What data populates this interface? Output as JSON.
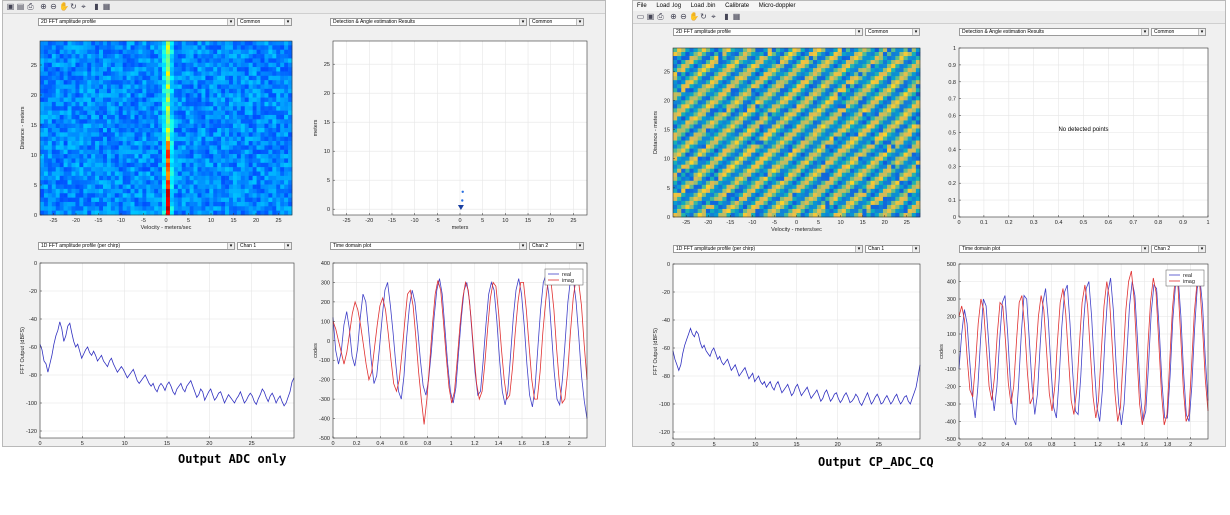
{
  "windowA": {
    "toolbar_icons": [
      "save-icon",
      "save-as-icon",
      "print-icon",
      "zoom-in-icon",
      "zoom-out-icon",
      "pan-icon",
      "rotate-icon",
      "data-cursor-icon",
      "colorbar-icon",
      "legend-icon"
    ],
    "panels": {
      "top_left": {
        "dropdown": "2D FFT amplitude profile",
        "mode": "Common"
      },
      "top_right": {
        "dropdown": "Detection & Angle estimation Results",
        "mode": "Common"
      },
      "bottom_left": {
        "dropdown": "1D FFT amplitude profile (per chirp)",
        "mode": "Chan 1"
      },
      "bottom_right": {
        "dropdown": "Time domain plot",
        "mode": "Chan 2"
      }
    },
    "caption": "Output ADC only"
  },
  "windowB": {
    "menu": [
      "File",
      "Load .log",
      "Load .bin",
      "Calibrate",
      "Micro-doppler"
    ],
    "toolbar_icons": [
      "open-icon",
      "save-icon",
      "print-icon",
      "zoom-in-icon",
      "zoom-out-icon",
      "pan-icon",
      "rotate-icon",
      "data-cursor-icon",
      "colorbar-icon",
      "legend-icon"
    ],
    "panels": {
      "top_left": {
        "dropdown": "2D FFT amplitude profile",
        "mode": "Common"
      },
      "top_right": {
        "dropdown": "Detection & Angle estimation Results",
        "mode": "Common"
      },
      "bottom_left": {
        "dropdown": "1D FFT amplitude profile (per chirp)",
        "mode": "Chan 1"
      },
      "bottom_right": {
        "dropdown": "Time domain plot",
        "mode": "Chan 2"
      }
    },
    "no_detect_text": "No detected points",
    "caption": "Output CP_ADC_CQ"
  },
  "chart_data": [
    {
      "id": "A_heatmap",
      "type": "heatmap",
      "xlabel": "Velocity - meters/sec",
      "ylabel": "Distance - meters",
      "xlim": [
        -28,
        28
      ],
      "ylim": [
        0,
        29
      ],
      "xticks": [
        -25,
        -20,
        -15,
        -10,
        -5,
        0,
        5,
        10,
        15,
        20,
        25
      ],
      "yticks": [
        0,
        5,
        10,
        15,
        20,
        25
      ],
      "description_values": {
        "peak_velocity": 0,
        "pattern": "strong vertical stripe at 0 m/s, hottest near 0-5 m range"
      }
    },
    {
      "id": "A_scatter",
      "type": "scatter",
      "xlabel": "meters",
      "ylabel": "meters",
      "xlim": [
        -28,
        28
      ],
      "ylim": [
        -1,
        29
      ],
      "xticks": [
        -25,
        -20,
        -15,
        -10,
        -5,
        0,
        5,
        10,
        15,
        20,
        25
      ],
      "yticks": [
        0,
        5,
        10,
        15,
        20,
        25
      ],
      "x": [
        0.2,
        0.5,
        0.6
      ],
      "y": [
        0.2,
        1.5,
        3.0
      ]
    },
    {
      "id": "A_fft1d",
      "type": "line",
      "xlabel": "",
      "ylabel": "FFT Output (dBFS)",
      "xlim": [
        0,
        30
      ],
      "ylim": [
        -125,
        0
      ],
      "xticks": [
        0,
        5,
        10,
        15,
        20,
        25
      ],
      "yticks": [
        0,
        -20,
        -40,
        -60,
        -80,
        -100,
        -120
      ],
      "series": [
        {
          "color": "#3030c0",
          "values": [
            -58,
            -62,
            -70,
            -72,
            -78,
            -72,
            -66,
            -58,
            -52,
            -48,
            -42,
            -47,
            -56,
            -52,
            -45,
            -43,
            -50,
            -56,
            -60,
            -58,
            -63,
            -68,
            -65,
            -62,
            -60,
            -64,
            -66,
            -63,
            -66,
            -70,
            -68,
            -66,
            -70,
            -72,
            -74,
            -70,
            -68,
            -72,
            -75,
            -78,
            -76,
            -74,
            -76,
            -79,
            -82,
            -80,
            -78,
            -76,
            -80,
            -84,
            -86,
            -84,
            -82,
            -80,
            -83,
            -86,
            -88,
            -86,
            -90,
            -92,
            -88,
            -86,
            -88,
            -91,
            -87,
            -85,
            -88,
            -92,
            -94,
            -90,
            -88,
            -86,
            -90,
            -92,
            -88,
            -86,
            -84,
            -88,
            -92,
            -96,
            -94,
            -90,
            -92,
            -98,
            -95,
            -92,
            -90,
            -94,
            -98,
            -96,
            -93,
            -92,
            -96,
            -100,
            -97,
            -94,
            -96,
            -98,
            -100,
            -97,
            -95,
            -92,
            -96,
            -100,
            -98,
            -95,
            -93,
            -95,
            -99,
            -101,
            -97,
            -94,
            -90,
            -92,
            -96,
            -99,
            -95,
            -93,
            -96,
            -100,
            -97,
            -95,
            -99,
            -102,
            -100,
            -96,
            -92,
            -85,
            -82
          ]
        }
      ]
    },
    {
      "id": "A_time",
      "type": "line",
      "xlabel": "",
      "ylabel": "codes",
      "xlim": [
        0,
        2.15
      ],
      "ylim": [
        -500,
        400
      ],
      "xticks": [
        0,
        0.2,
        0.4,
        0.6,
        0.8,
        1,
        1.2,
        1.4,
        1.6,
        1.8,
        2
      ],
      "yticks": [
        400,
        300,
        200,
        100,
        0,
        -100,
        -200,
        -300,
        -400,
        -500
      ],
      "legend": [
        "real",
        "imag"
      ],
      "series": [
        {
          "name": "real",
          "color": "#4040c8",
          "values": [
            120,
            -50,
            -120,
            -60,
            80,
            150,
            60,
            -80,
            -130,
            -40,
            120,
            240,
            200,
            60,
            -100,
            -220,
            -180,
            -40,
            120,
            260,
            300,
            180,
            40,
            -120,
            -260,
            -300,
            -180,
            20,
            180,
            260,
            200,
            60,
            -100,
            -230,
            -280,
            -200,
            -60,
            120,
            260,
            320,
            240,
            60,
            -120,
            -260,
            -320,
            -240,
            -60,
            120,
            260,
            300,
            200,
            20,
            -160,
            -280,
            -260,
            -100,
            80,
            240,
            300,
            260,
            100,
            -100,
            -260,
            -330,
            -260,
            -80,
            120,
            260,
            320,
            240,
            80,
            -120,
            -280,
            -340,
            -240,
            -40,
            160,
            300,
            340,
            240,
            40,
            -160,
            -300,
            -330,
            -200,
            0,
            200,
            320,
            320,
            200,
            20,
            -180,
            -310,
            -400
          ]
        },
        {
          "name": "imag",
          "color": "#e03030",
          "values": [
            100,
            60,
            0,
            -60,
            -120,
            -60,
            40,
            140,
            200,
            160,
            80,
            -20,
            -120,
            -200,
            -160,
            -40,
            80,
            180,
            220,
            160,
            40,
            -100,
            -220,
            -260,
            -200,
            -60,
            100,
            240,
            260,
            180,
            20,
            -160,
            -300,
            -430,
            -300,
            -120,
            80,
            240,
            310,
            260,
            100,
            -80,
            -240,
            -320,
            -260,
            -100,
            80,
            220,
            300,
            260,
            120,
            -60,
            -220,
            -300,
            -260,
            -120,
            60,
            220,
            300,
            280,
            140,
            -40,
            -200,
            -300,
            -280,
            -140,
            40,
            200,
            300,
            300,
            160,
            -20,
            -200,
            -300,
            -300,
            -160,
            40,
            200,
            320,
            300,
            160,
            -40,
            -220,
            -320,
            -300,
            -160,
            40,
            220,
            320,
            300,
            180,
            -20,
            -200
          ]
        }
      ]
    },
    {
      "id": "B_heatmap",
      "type": "heatmap",
      "xlabel": "Velocity - meters/sec",
      "ylabel": "Distance - meters",
      "xlim": [
        -28,
        28
      ],
      "ylim": [
        0,
        29
      ],
      "xticks": [
        -25,
        -20,
        -15,
        -10,
        -5,
        0,
        5,
        10,
        15,
        20,
        25
      ],
      "yticks": [
        0,
        5,
        10,
        15,
        20,
        25
      ],
      "description_values": {
        "pattern": "diagonal yellow/green/blue striped noise across whole map"
      }
    },
    {
      "id": "B_scatter",
      "type": "scatter",
      "xlabel": "",
      "ylabel": "",
      "xlim": [
        0,
        1
      ],
      "ylim": [
        0,
        1
      ],
      "xticks": [
        0,
        0.1,
        0.2,
        0.3,
        0.4,
        0.5,
        0.6,
        0.7,
        0.8,
        0.9,
        1
      ],
      "yticks": [
        0,
        0.1,
        0.2,
        0.3,
        0.4,
        0.5,
        0.6,
        0.7,
        0.8,
        0.9,
        1
      ],
      "x": [],
      "y": []
    },
    {
      "id": "B_fft1d",
      "type": "line",
      "xlabel": "",
      "ylabel": "FFT Output (dBFS)",
      "xlim": [
        0,
        30
      ],
      "ylim": [
        -125,
        0
      ],
      "xticks": [
        0,
        5,
        10,
        15,
        20,
        25
      ],
      "yticks": [
        0,
        -20,
        -40,
        -60,
        -80,
        -100,
        -120
      ],
      "series": [
        {
          "color": "#3030c0",
          "values": [
            -62,
            -68,
            -72,
            -76,
            -72,
            -64,
            -58,
            -54,
            -50,
            -46,
            -50,
            -52,
            -48,
            -50,
            -56,
            -60,
            -58,
            -62,
            -64,
            -66,
            -62,
            -60,
            -64,
            -68,
            -66,
            -70,
            -72,
            -70,
            -68,
            -72,
            -76,
            -74,
            -72,
            -76,
            -80,
            -78,
            -76,
            -74,
            -78,
            -82,
            -80,
            -78,
            -84,
            -82,
            -80,
            -84,
            -86,
            -84,
            -88,
            -86,
            -84,
            -88,
            -90,
            -86,
            -84,
            -88,
            -92,
            -90,
            -88,
            -86,
            -90,
            -94,
            -92,
            -88,
            -86,
            -90,
            -94,
            -92,
            -90,
            -88,
            -92,
            -96,
            -94,
            -92,
            -90,
            -94,
            -98,
            -96,
            -92,
            -90,
            -94,
            -98,
            -96,
            -93,
            -92,
            -96,
            -99,
            -97,
            -94,
            -92,
            -95,
            -99,
            -98,
            -96,
            -93,
            -95,
            -99,
            -101,
            -98,
            -95,
            -92,
            -96,
            -100,
            -98,
            -95,
            -93,
            -96,
            -100,
            -99,
            -96,
            -94,
            -97,
            -100,
            -98,
            -95,
            -93,
            -97,
            -100,
            -98,
            -95,
            -94,
            -98,
            -100,
            -96,
            -92,
            -88,
            -80,
            -72
          ]
        }
      ]
    },
    {
      "id": "B_time",
      "type": "line",
      "xlabel": "",
      "ylabel": "codes",
      "xlim": [
        0,
        2.15
      ],
      "ylim": [
        -500,
        500
      ],
      "xticks": [
        0,
        0.2,
        0.4,
        0.6,
        0.8,
        1,
        1.2,
        1.4,
        1.6,
        1.8,
        2
      ],
      "yticks": [
        500,
        400,
        300,
        200,
        100,
        0,
        -100,
        -200,
        -300,
        -400,
        -500
      ],
      "legend": [
        "real",
        "imag"
      ],
      "series": [
        {
          "name": "real",
          "color": "#4040c8",
          "values": [
            -100,
            100,
            240,
            160,
            -60,
            -260,
            -380,
            -200,
            80,
            300,
            260,
            40,
            -200,
            -340,
            -200,
            60,
            280,
            320,
            100,
            -180,
            -380,
            -420,
            -200,
            100,
            320,
            300,
            60,
            -200,
            -360,
            -240,
            40,
            280,
            360,
            180,
            -100,
            -320,
            -380,
            -160,
            140,
            340,
            380,
            160,
            -120,
            -340,
            -360,
            -140,
            160,
            360,
            400,
            200,
            -80,
            -320,
            -400,
            -220,
            100,
            340,
            420,
            240,
            -60,
            -300,
            -420,
            -300,
            -20,
            260,
            400,
            320,
            60,
            -240,
            -400,
            -340,
            -80,
            220,
            380,
            360,
            120,
            -180,
            -380,
            -380,
            -140,
            180,
            380,
            420,
            200,
            -120,
            -360,
            -400,
            -200,
            120,
            360,
            420,
            260,
            -40,
            -280
          ]
        },
        {
          "name": "imag",
          "color": "#e03030",
          "values": [
            200,
            260,
            180,
            -40,
            -220,
            -260,
            -80,
            160,
            300,
            240,
            20,
            -200,
            -280,
            -140,
            100,
            280,
            260,
            60,
            -180,
            -300,
            -200,
            60,
            280,
            320,
            140,
            -120,
            -300,
            -260,
            -40,
            200,
            320,
            240,
            0,
            -240,
            -340,
            -200,
            60,
            280,
            360,
            220,
            -40,
            -280,
            -360,
            -220,
            40,
            280,
            380,
            260,
            0,
            -260,
            -380,
            -280,
            0,
            260,
            400,
            300,
            40,
            -240,
            -400,
            -320,
            -40,
            240,
            400,
            460,
            300,
            -20,
            -300,
            -420,
            -300,
            20,
            280,
            420,
            340,
            60,
            -240,
            -420,
            -360,
            -60,
            240,
            420,
            380,
            100,
            -220,
            -400,
            -360,
            -80,
            220,
            400,
            380,
            140,
            -160,
            -340
          ]
        }
      ]
    }
  ]
}
